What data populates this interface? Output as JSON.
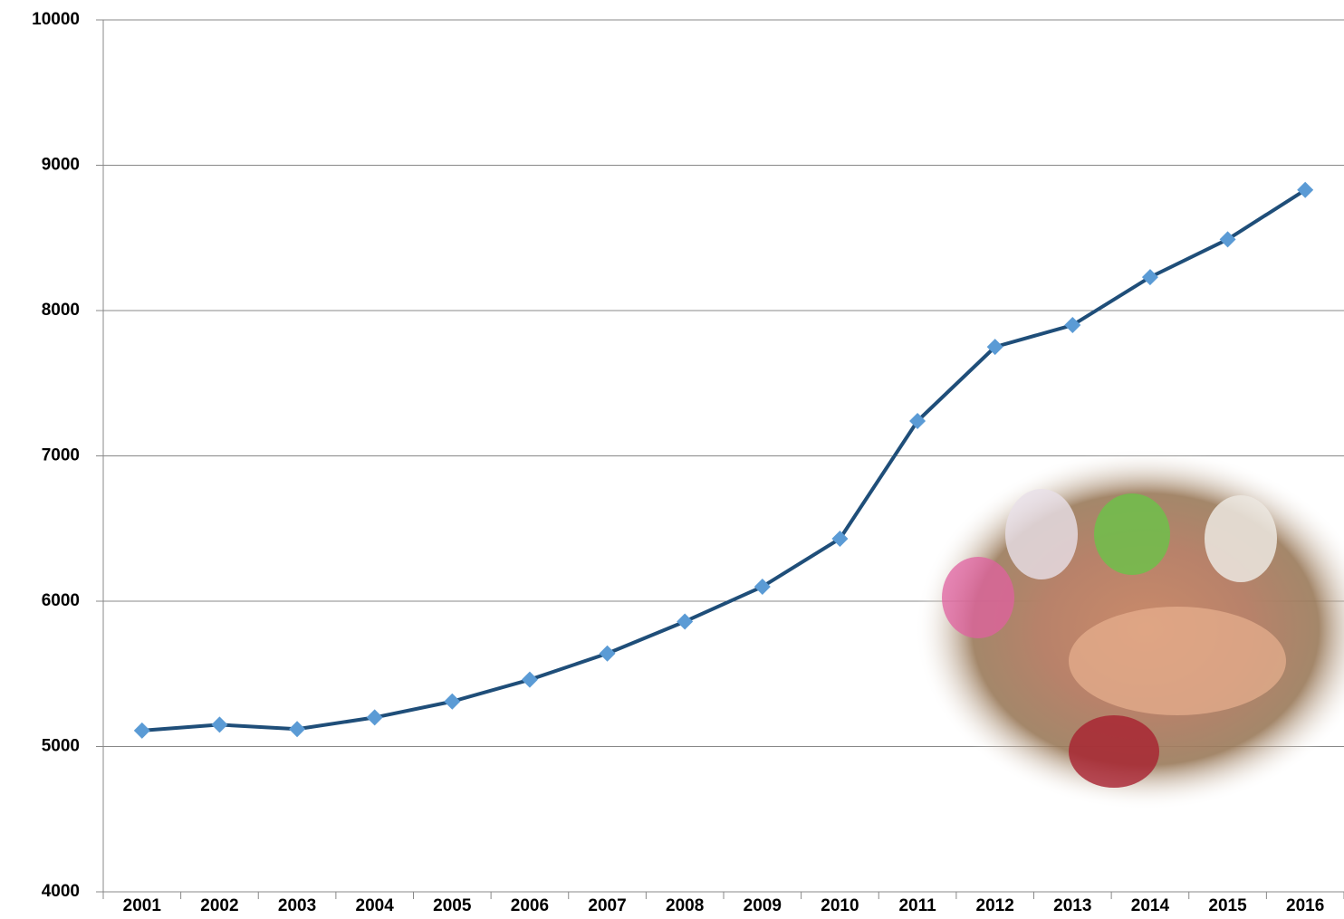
{
  "chart_data": {
    "type": "line",
    "categories": [
      "2001",
      "2002",
      "2003",
      "2004",
      "2005",
      "2006",
      "2007",
      "2008",
      "2009",
      "2010",
      "2011",
      "2012",
      "2013",
      "2014",
      "2015",
      "2016"
    ],
    "series": [
      {
        "color": "#1f4e79",
        "marker_color": "#5b9bd5",
        "values": [
          5110,
          5150,
          5120,
          5200,
          5310,
          5460,
          5640,
          5860,
          6100,
          6430,
          7240,
          7750,
          7900,
          8230,
          8490,
          8830
        ]
      }
    ],
    "ylim": [
      4000,
      10000
    ],
    "yticks": [
      4000,
      5000,
      6000,
      7000,
      8000,
      9000,
      10000
    ],
    "grid": true
  }
}
